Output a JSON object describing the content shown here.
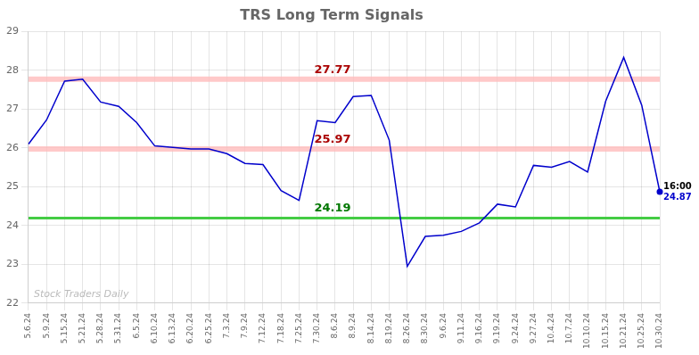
{
  "chart_data": {
    "type": "line",
    "title": "TRS Long Term Signals",
    "categories": [
      "5.6.24",
      "5.9.24",
      "5.15.24",
      "5.21.24",
      "5.28.24",
      "5.31.24",
      "6.5.24",
      "6.10.24",
      "6.13.24",
      "6.20.24",
      "6.25.24",
      "7.3.24",
      "7.9.24",
      "7.12.24",
      "7.18.24",
      "7.25.24",
      "7.30.24",
      "8.6.24",
      "8.9.24",
      "8.14.24",
      "8.19.24",
      "8.26.24",
      "8.30.24",
      "9.6.24",
      "9.11.24",
      "9.16.24",
      "9.19.24",
      "9.24.24",
      "9.27.24",
      "10.4.24",
      "10.7.24",
      "10.10.24",
      "10.15.24",
      "10.21.24",
      "10.25.24",
      "10.30.24"
    ],
    "values": [
      26.1,
      26.72,
      27.72,
      27.77,
      27.18,
      27.07,
      26.65,
      26.05,
      26.01,
      25.97,
      25.97,
      25.85,
      25.6,
      25.57,
      24.9,
      24.65,
      26.7,
      26.65,
      27.32,
      27.35,
      26.2,
      22.95,
      23.72,
      23.75,
      23.85,
      24.07,
      24.55,
      24.48,
      25.55,
      25.5,
      25.65,
      25.38,
      27.2,
      28.33,
      27.1,
      24.87
    ],
    "color": "#0000cc",
    "ylim": [
      22,
      29
    ],
    "yticks": [
      22,
      23,
      24,
      25,
      26,
      27,
      28,
      29
    ],
    "grid": true,
    "annotations": [
      {
        "type": "hline",
        "y": 27.77,
        "text": "27.77",
        "color": "#aa0000",
        "line_color": "#ffbbbb"
      },
      {
        "type": "hline",
        "y": 25.97,
        "text": "25.97",
        "color": "#aa0000",
        "line_color": "#ffbbbb"
      },
      {
        "type": "hline",
        "y": 24.19,
        "text": "24.19",
        "color": "#007700",
        "line_color": "#44cc44"
      },
      {
        "type": "end_value",
        "y": 24.87,
        "text": "24.87",
        "color": "#0000cc"
      },
      {
        "type": "end_time",
        "text": "16:00",
        "color": "#000000"
      },
      {
        "type": "watermark",
        "text": "Stock Traders Daily",
        "color": "#bbbbbb"
      }
    ]
  }
}
